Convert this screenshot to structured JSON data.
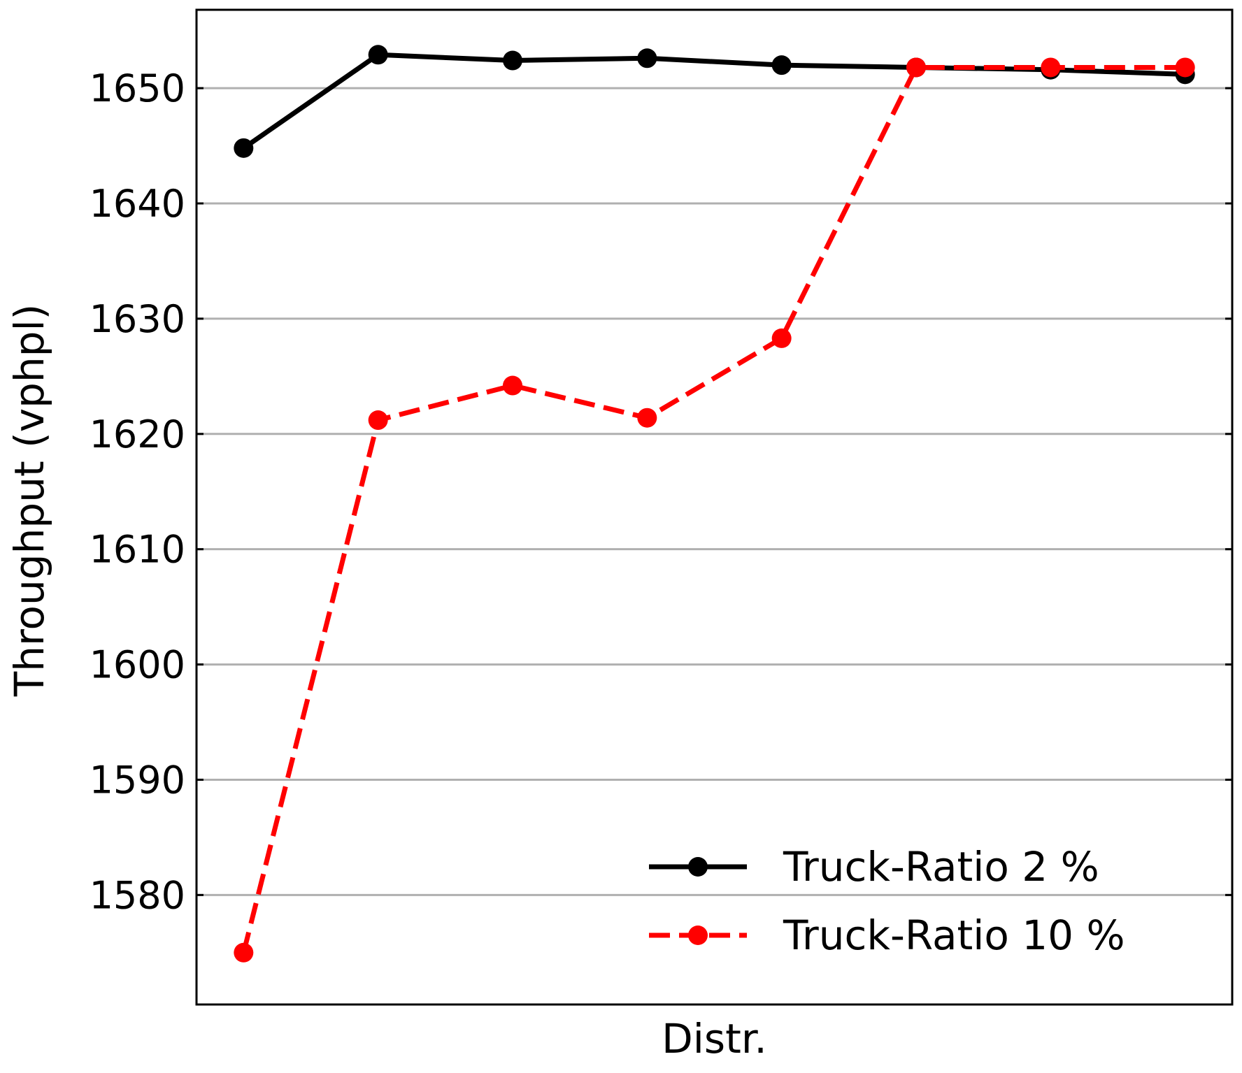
{
  "chart_data": {
    "type": "line",
    "title": "",
    "xlabel": "Distr.",
    "ylabel": "Throughput (vphpl)",
    "x": [
      1,
      2,
      3,
      4,
      5,
      6,
      7,
      8
    ],
    "xlim": [
      0.65,
      8.35
    ],
    "ylim": [
      1570.5,
      1656.8
    ],
    "yticks": [
      "1580",
      "1590",
      "1600",
      "1610",
      "1620",
      "1630",
      "1640",
      "1650"
    ],
    "grid": "y",
    "legend_position": "lower-right",
    "series": [
      {
        "name": "Truck-Ratio 2 %",
        "color": "#000000",
        "style": "solid",
        "marker": "circle",
        "values": [
          1644.8,
          1652.9,
          1652.4,
          1652.6,
          1652.0,
          1651.8,
          1651.6,
          1651.2
        ]
      },
      {
        "name": "Truck-Ratio 10 %",
        "color": "#ff0000",
        "style": "dashed",
        "marker": "circle",
        "values": [
          1575.0,
          1621.2,
          1624.2,
          1621.4,
          1628.3,
          1651.8,
          1651.8,
          1651.8
        ]
      }
    ]
  }
}
